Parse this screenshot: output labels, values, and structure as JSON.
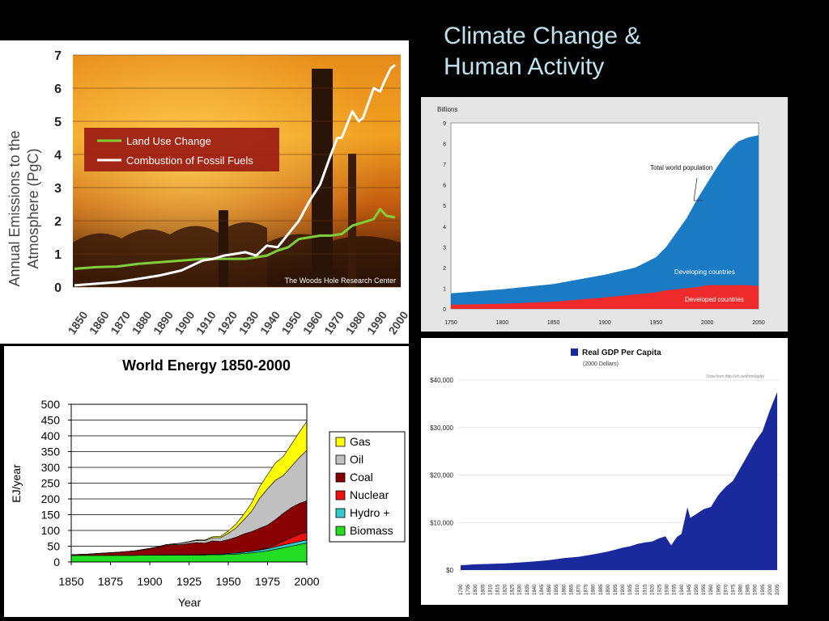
{
  "slide": {
    "title_line1": "Climate Change &",
    "title_line2": "Human Activity"
  },
  "chart_data": [
    {
      "type": "line",
      "ylabel_line1": "Annual Emissions to the",
      "ylabel_line2": "Atmosphere (PgC)",
      "ylim": [
        0,
        7
      ],
      "yticks": [
        0,
        1,
        2,
        3,
        4,
        5,
        6,
        7
      ],
      "xlim": [
        1850,
        2000
      ],
      "xticks": [
        1850,
        1860,
        1870,
        1880,
        1890,
        1900,
        1910,
        1920,
        1930,
        1940,
        1950,
        1960,
        1970,
        1980,
        1990,
        2000
      ],
      "legend": "upper-left",
      "credit": "The Woods Hole Research Center",
      "colors": {
        "land": "#7fcf3a",
        "fossil": "#ffffff",
        "legend_bg": "#9b1b12"
      },
      "series": [
        {
          "name": "Land Use Change",
          "x": [
            1850,
            1860,
            1870,
            1880,
            1890,
            1900,
            1910,
            1920,
            1930,
            1940,
            1945,
            1950,
            1955,
            1960,
            1965,
            1970,
            1975,
            1980,
            1985,
            1990,
            1993,
            1996,
            2000
          ],
          "values": [
            0.55,
            0.6,
            0.62,
            0.7,
            0.75,
            0.8,
            0.85,
            0.85,
            0.85,
            0.95,
            1.1,
            1.2,
            1.45,
            1.5,
            1.55,
            1.55,
            1.6,
            1.85,
            1.95,
            2.05,
            2.35,
            2.15,
            2.1
          ]
        },
        {
          "name": "Combustion of Fossil Fuels",
          "x": [
            1850,
            1860,
            1870,
            1880,
            1890,
            1900,
            1910,
            1915,
            1920,
            1925,
            1930,
            1935,
            1940,
            1945,
            1950,
            1955,
            1960,
            1965,
            1970,
            1973,
            1975,
            1980,
            1983,
            1985,
            1990,
            1993,
            1995,
            1998,
            2000
          ],
          "values": [
            0.05,
            0.1,
            0.15,
            0.25,
            0.35,
            0.5,
            0.8,
            0.85,
            0.95,
            1.0,
            1.05,
            0.95,
            1.25,
            1.2,
            1.6,
            2.0,
            2.6,
            3.1,
            4.0,
            4.5,
            4.5,
            5.3,
            5.0,
            5.1,
            6.0,
            5.9,
            6.2,
            6.6,
            6.7
          ]
        }
      ]
    },
    {
      "type": "area",
      "ylabel": "Billions",
      "ylim": [
        0,
        9
      ],
      "yticks": [
        0,
        1,
        2,
        3,
        4,
        5,
        6,
        7,
        8,
        9
      ],
      "xlim": [
        1750,
        2050
      ],
      "xticks": [
        1750,
        1800,
        1850,
        1900,
        1950,
        2000,
        2050
      ],
      "colors": {
        "developing": "#1a7ac4",
        "developed": "#ee2a2a"
      },
      "x": [
        1750,
        1800,
        1850,
        1900,
        1930,
        1950,
        1960,
        1970,
        1980,
        1990,
        2000,
        2010,
        2020,
        2030,
        2040,
        2050
      ],
      "series": [
        {
          "name": "Developed countries",
          "values": [
            0.2,
            0.25,
            0.35,
            0.55,
            0.7,
            0.8,
            0.9,
            0.95,
            1.0,
            1.05,
            1.15,
            1.15,
            1.15,
            1.15,
            1.15,
            1.1
          ]
        },
        {
          "name": "Total world population",
          "values": [
            0.75,
            0.95,
            1.2,
            1.65,
            2.0,
            2.5,
            3.0,
            3.7,
            4.4,
            5.3,
            6.1,
            6.9,
            7.6,
            8.1,
            8.3,
            8.4
          ]
        }
      ],
      "labels": {
        "total": "Total world population",
        "developing": "Developing countries",
        "developed": "Developed countries"
      }
    },
    {
      "type": "area",
      "title": "World Energy 1850-2000",
      "xlabel": "Year",
      "ylabel": "EJ/year",
      "ylim": [
        0,
        500
      ],
      "yticks": [
        0,
        50,
        100,
        150,
        200,
        250,
        300,
        350,
        400,
        450,
        500
      ],
      "xlim": [
        1850,
        2000
      ],
      "xticks": [
        1850,
        1875,
        1900,
        1925,
        1950,
        1975,
        2000
      ],
      "legend": "right",
      "legend_order": [
        "Gas",
        "Oil",
        "Coal",
        "Nuclear",
        "Hydro +",
        "Biomass"
      ],
      "x": [
        1850,
        1860,
        1870,
        1880,
        1890,
        1900,
        1905,
        1910,
        1915,
        1920,
        1925,
        1930,
        1935,
        1940,
        1945,
        1950,
        1955,
        1960,
        1965,
        1970,
        1975,
        1980,
        1985,
        1990,
        1995,
        2000
      ],
      "series": [
        {
          "name": "Biomass",
          "color": "#22dd22",
          "values": [
            21,
            21,
            21,
            21,
            21,
            22,
            22,
            22,
            22,
            22,
            22,
            22,
            22,
            23,
            23,
            24,
            25,
            27,
            29,
            32,
            35,
            40,
            45,
            50,
            55,
            60
          ]
        },
        {
          "name": "Hydro +",
          "color": "#33cccc",
          "values": [
            0,
            0,
            0,
            0,
            0,
            0,
            0,
            0.5,
            0.5,
            1,
            1,
            1.5,
            1.5,
            2,
            2,
            3,
            3.5,
            4,
            5,
            6,
            7,
            8,
            9,
            9,
            10,
            10
          ]
        },
        {
          "name": "Nuclear",
          "color": "#ee1111",
          "values": [
            0,
            0,
            0,
            0,
            0,
            0,
            0,
            0,
            0,
            0,
            0,
            0,
            0,
            0,
            0,
            0,
            0,
            0,
            0.5,
            1,
            3,
            6,
            12,
            18,
            22,
            24
          ]
        },
        {
          "name": "Coal",
          "color": "#880000",
          "values": [
            2,
            4,
            7,
            10,
            14,
            20,
            25,
            30,
            33,
            32,
            36,
            38,
            36,
            42,
            40,
            44,
            50,
            58,
            62,
            68,
            72,
            80,
            88,
            95,
            98,
            100
          ]
        },
        {
          "name": "Oil",
          "color": "#c0c0c0",
          "values": [
            0,
            0,
            0,
            0,
            0,
            1,
            1,
            2,
            2,
            4,
            5,
            7,
            8,
            10,
            12,
            20,
            30,
            45,
            65,
            95,
            115,
            125,
            120,
            130,
            145,
            160
          ]
        },
        {
          "name": "Gas",
          "color": "#ffff00",
          "values": [
            0,
            0,
            0,
            0,
            0,
            0,
            0,
            0,
            0,
            1,
            1,
            2,
            2,
            3,
            4,
            7,
            12,
            18,
            27,
            37,
            45,
            55,
            60,
            70,
            80,
            92
          ]
        }
      ]
    },
    {
      "type": "area",
      "title": "Real GDP Per Capita",
      "subtitle": "(2000 Dollars)",
      "source": "Data from http://eh.net/hmit/gdp/",
      "ylim": [
        0,
        40000
      ],
      "yticks": [
        0,
        10000,
        20000,
        30000,
        40000
      ],
      "ytick_labels": [
        "$0",
        "$10,000",
        "$20,000",
        "$30,000",
        "$40,000"
      ],
      "xlim": [
        1790,
        2005
      ],
      "xticks": [
        1790,
        1795,
        1800,
        1805,
        1810,
        1815,
        1820,
        1825,
        1830,
        1835,
        1840,
        1845,
        1850,
        1855,
        1860,
        1865,
        1870,
        1875,
        1880,
        1885,
        1890,
        1895,
        1900,
        1905,
        1910,
        1915,
        1920,
        1925,
        1930,
        1935,
        1940,
        1945,
        1950,
        1955,
        1960,
        1965,
        1970,
        1975,
        1980,
        1985,
        1990,
        1995,
        2000,
        2005
      ],
      "colors": {
        "fill": "#1a2a9c",
        "grid": "#dddddd"
      },
      "x": [
        1790,
        1800,
        1810,
        1820,
        1830,
        1840,
        1850,
        1860,
        1870,
        1880,
        1890,
        1900,
        1905,
        1910,
        1915,
        1920,
        1925,
        1929,
        1933,
        1937,
        1940,
        1944,
        1946,
        1950,
        1955,
        1960,
        1965,
        1970,
        1975,
        1980,
        1985,
        1990,
        1995,
        2000,
        2005
      ],
      "series": [
        {
          "name": "Real GDP Per Capita",
          "values": [
            1000,
            1200,
            1300,
            1400,
            1600,
            1800,
            2100,
            2500,
            2800,
            3300,
            3900,
            4700,
            5000,
            5500,
            5800,
            6000,
            6700,
            7100,
            5200,
            7000,
            7600,
            13200,
            11000,
            11800,
            12800,
            13300,
            15800,
            17500,
            18800,
            21500,
            24200,
            27000,
            29200,
            33600,
            37500
          ]
        }
      ]
    }
  ]
}
